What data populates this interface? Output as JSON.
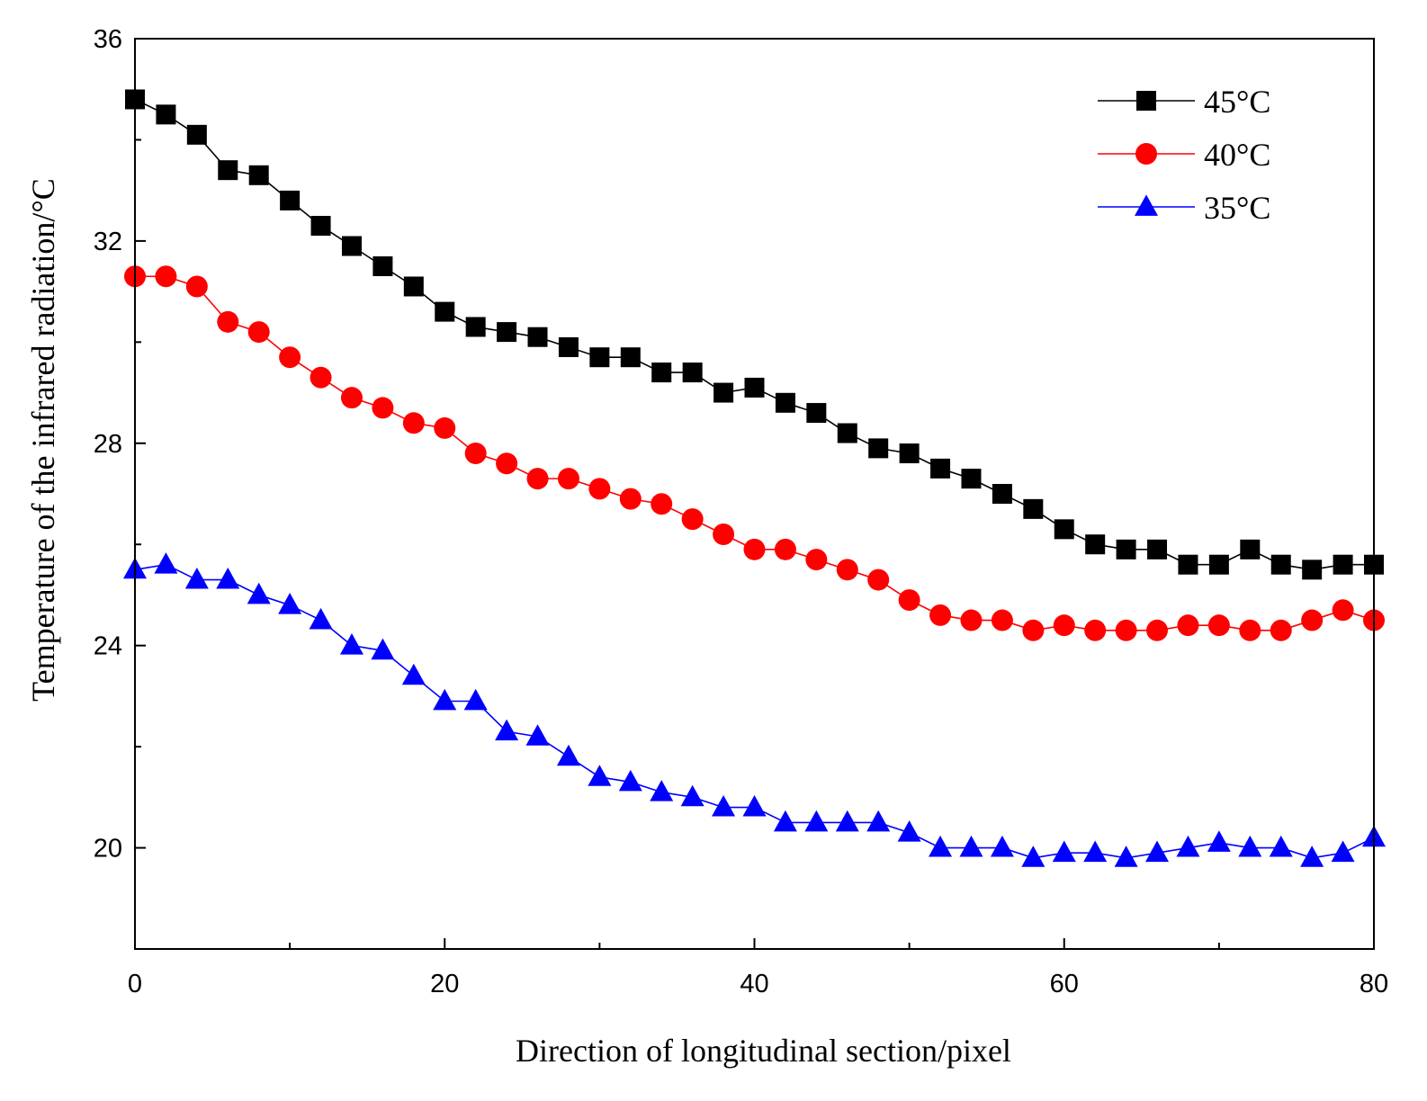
{
  "chart_data": {
    "type": "line",
    "title": "",
    "xlabel": "Direction of longitudinal section/pixel",
    "ylabel": "Temperature of the infrared radiation/°C",
    "xlim": [
      0,
      80
    ],
    "ylim": [
      18,
      36
    ],
    "xticks": [
      0,
      20,
      40,
      60,
      80
    ],
    "yticks": [
      20,
      24,
      28,
      32,
      36
    ],
    "grid": false,
    "legend_position": "top-right",
    "x": [
      0,
      2,
      4,
      6,
      8,
      10,
      12,
      14,
      16,
      18,
      20,
      22,
      24,
      26,
      28,
      30,
      32,
      34,
      36,
      38,
      40,
      42,
      44,
      46,
      48,
      50,
      52,
      54,
      56,
      58,
      60,
      62,
      64,
      66,
      68,
      70,
      72,
      74,
      76,
      78,
      80
    ],
    "series": [
      {
        "name": "45°C",
        "color": "#000000",
        "marker": "square",
        "values": [
          34.8,
          34.5,
          34.1,
          33.4,
          33.3,
          32.8,
          32.3,
          31.9,
          31.5,
          31.1,
          30.6,
          30.3,
          30.2,
          30.1,
          29.9,
          29.7,
          29.7,
          29.4,
          29.4,
          29.0,
          29.1,
          28.8,
          28.6,
          28.2,
          27.9,
          27.8,
          27.5,
          27.3,
          27.0,
          26.7,
          26.3,
          26.0,
          25.9,
          25.9,
          25.6,
          25.6,
          25.9,
          25.6,
          25.5,
          25.6,
          25.6
        ]
      },
      {
        "name": "40°C",
        "color": "#ff0000",
        "marker": "circle",
        "values": [
          31.3,
          31.3,
          31.1,
          30.4,
          30.2,
          29.7,
          29.3,
          28.9,
          28.7,
          28.4,
          28.3,
          27.8,
          27.6,
          27.3,
          27.3,
          27.1,
          26.9,
          26.8,
          26.5,
          26.2,
          25.9,
          25.9,
          25.7,
          25.5,
          25.3,
          24.9,
          24.6,
          24.5,
          24.5,
          24.3,
          24.4,
          24.3,
          24.3,
          24.3,
          24.4,
          24.4,
          24.3,
          24.3,
          24.5,
          24.7,
          24.5
        ]
      },
      {
        "name": "35°C",
        "color": "#0000ff",
        "marker": "triangle",
        "values": [
          25.5,
          25.6,
          25.3,
          25.3,
          25.0,
          24.8,
          24.5,
          24.0,
          23.9,
          23.4,
          22.9,
          22.9,
          22.3,
          22.2,
          21.8,
          21.4,
          21.3,
          21.1,
          21.0,
          20.8,
          20.8,
          20.5,
          20.5,
          20.5,
          20.5,
          20.3,
          20.0,
          20.0,
          20.0,
          19.8,
          19.9,
          19.9,
          19.8,
          19.9,
          20.0,
          20.1,
          20.0,
          20.0,
          19.8,
          19.9,
          20.2
        ]
      }
    ]
  }
}
